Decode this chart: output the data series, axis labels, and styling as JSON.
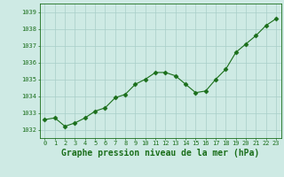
{
  "x": [
    0,
    1,
    2,
    3,
    4,
    5,
    6,
    7,
    8,
    9,
    10,
    11,
    12,
    13,
    14,
    15,
    16,
    17,
    18,
    19,
    20,
    21,
    22,
    23
  ],
  "y": [
    1032.6,
    1032.7,
    1032.2,
    1032.4,
    1032.7,
    1033.1,
    1033.3,
    1033.9,
    1034.1,
    1034.7,
    1035.0,
    1035.4,
    1035.4,
    1035.2,
    1034.7,
    1034.2,
    1034.3,
    1035.0,
    1035.6,
    1036.6,
    1037.1,
    1037.6,
    1038.2,
    1038.6
  ],
  "line_color": "#1a6e1a",
  "marker": "D",
  "marker_size": 2.5,
  "bg_color": "#ceeae4",
  "plot_bg_color": "#ceeae4",
  "grid_color": "#a8cec8",
  "title": "Graphe pression niveau de la mer (hPa)",
  "title_color": "#1a6e1a",
  "title_fontsize": 7.0,
  "tick_color": "#1a6e1a",
  "tick_fontsize": 5.0,
  "ylim_min": 1031.5,
  "ylim_max": 1039.5,
  "xlim_min": -0.5,
  "xlim_max": 23.5,
  "yticks": [
    1032,
    1033,
    1034,
    1035,
    1036,
    1037,
    1038,
    1039
  ],
  "xticks": [
    0,
    1,
    2,
    3,
    4,
    5,
    6,
    7,
    8,
    9,
    10,
    11,
    12,
    13,
    14,
    15,
    16,
    17,
    18,
    19,
    20,
    21,
    22,
    23
  ]
}
